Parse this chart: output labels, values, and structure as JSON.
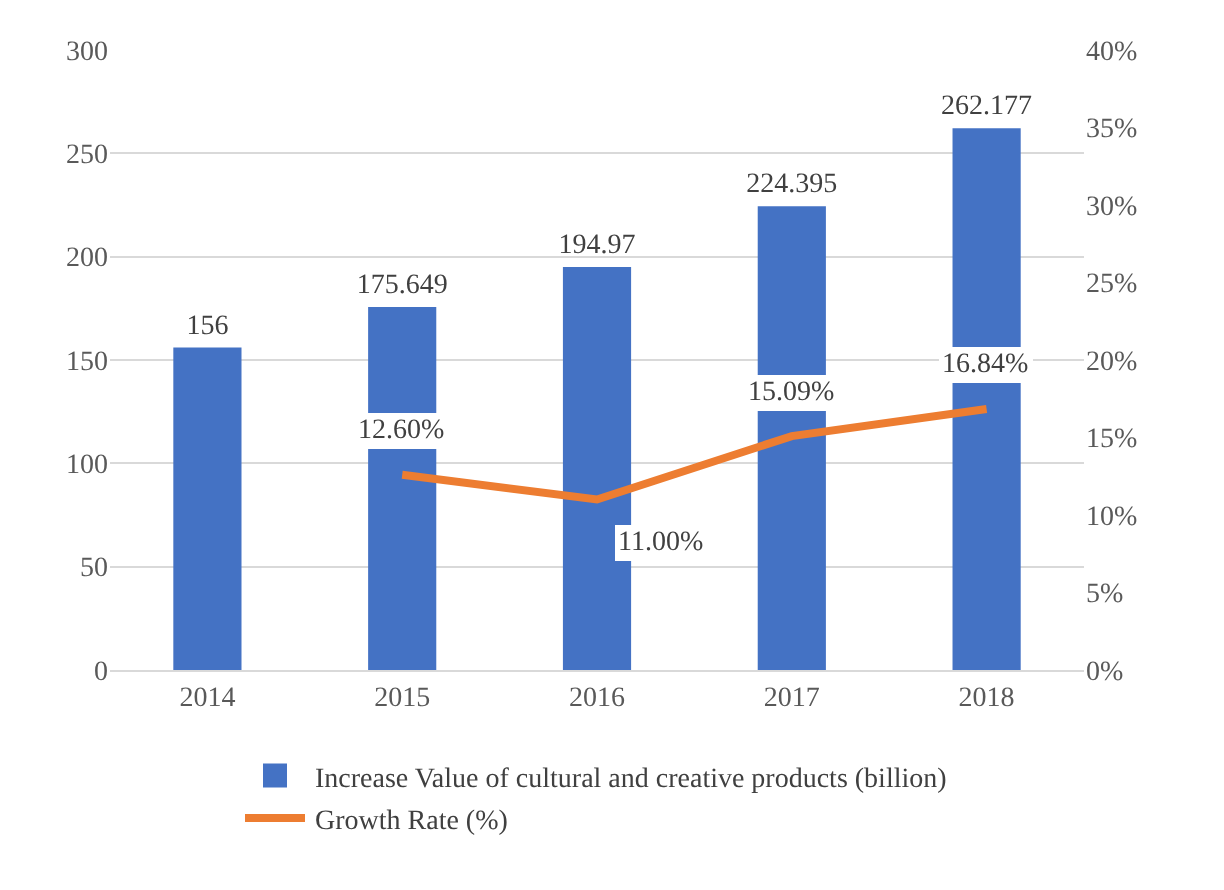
{
  "chart_data": {
    "type": "bar",
    "categories": [
      "2014",
      "2015",
      "2016",
      "2017",
      "2018"
    ],
    "series": [
      {
        "name": "Increase Value of cultural and creative products (billion)",
        "color": "#4472c4",
        "values": [
          156,
          175.649,
          194.97,
          224.395,
          262.177
        ]
      },
      {
        "name": "Growth Rate (%)",
        "type": "line",
        "axis": "y2",
        "color": "#ed7d31",
        "values": [
          null,
          12.6,
          11.0,
          15.09,
          16.84
        ],
        "value_labels": [
          null,
          "12.60%",
          "11.00%",
          "15.09%",
          "16.84%"
        ]
      }
    ],
    "ylim": [
      0,
      300
    ],
    "yticks": [
      0,
      50,
      100,
      150,
      200,
      250,
      300
    ],
    "y2lim": [
      0,
      40
    ],
    "y2ticks": [
      {
        "value": 0,
        "label": "0%"
      },
      {
        "value": 5,
        "label": "5%"
      },
      {
        "value": 10,
        "label": "10%"
      },
      {
        "value": 15,
        "label": "15%"
      },
      {
        "value": 20,
        "label": "20%"
      },
      {
        "value": 25,
        "label": "25%"
      },
      {
        "value": 30,
        "label": "30%"
      },
      {
        "value": 35,
        "label": "35%"
      },
      {
        "value": 40,
        "label": "40%"
      }
    ],
    "data_labels": true,
    "grid": "y",
    "legend": "bottom",
    "marker": "none",
    "line_style": "solid"
  }
}
